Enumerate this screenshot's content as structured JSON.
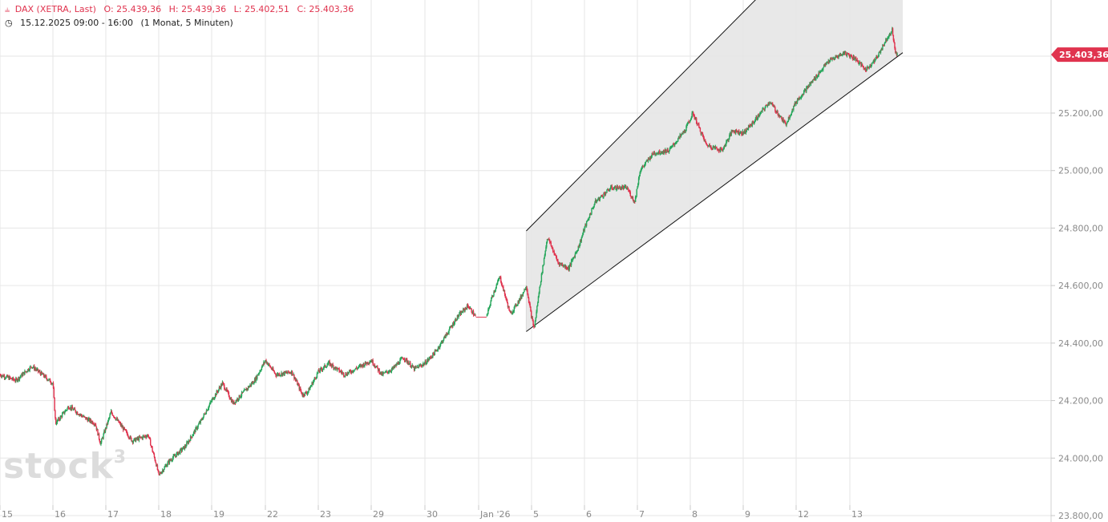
{
  "header": {
    "symbol_icon": "candlestick-icon",
    "instrument": "DAX (XETRA, Last)",
    "open": "O: 25.439,36",
    "high": "H: 25.439,36",
    "low": "L: 25.402,51",
    "close": "C: 25.403,36",
    "clock_icon": "clock-icon",
    "period": "15.12.2025 09:00 - 16:00",
    "interval": "(1 Monat, 5 Minuten)"
  },
  "logo": {
    "text": "stock",
    "sup": "3"
  },
  "last_price_label": "25.403,36",
  "colors": {
    "up": "#26a65b",
    "down": "#e0334e",
    "channel_fill": "#e6e6e6",
    "grid": "#e6e6e6"
  },
  "chart_data": {
    "type": "candlestick",
    "title": "DAX (XETRA, Last)",
    "ylim": [
      23800,
      26100
    ],
    "y_ticks": [
      {
        "value": 23800,
        "label": "23.800,00"
      },
      {
        "value": 24000,
        "label": "24.000,00"
      },
      {
        "value": 24200,
        "label": "24.200,00"
      },
      {
        "value": 24400,
        "label": "24.400,00"
      },
      {
        "value": 24600,
        "label": "24.600,00"
      },
      {
        "value": 24800,
        "label": "24.800,00"
      },
      {
        "value": 25000,
        "label": "25.000,00"
      },
      {
        "value": 25200,
        "label": "25.200,00"
      }
    ],
    "x_ticks": [
      "15",
      "16",
      "17",
      "18",
      "19",
      "22",
      "23",
      "29",
      "30",
      "Jan '26",
      "5",
      "6",
      "7",
      "8",
      "9",
      "12",
      "13"
    ],
    "last_price": 25403.36,
    "grid": true,
    "path": [
      [
        0.0,
        24290
      ],
      [
        0.3,
        24270
      ],
      [
        0.6,
        24320
      ],
      [
        0.8,
        24290
      ],
      [
        1.0,
        24260
      ],
      [
        1.05,
        24120
      ],
      [
        1.3,
        24180
      ],
      [
        1.6,
        24140
      ],
      [
        1.8,
        24120
      ],
      [
        1.9,
        24050
      ],
      [
        2.1,
        24160
      ],
      [
        2.5,
        24060
      ],
      [
        2.8,
        24080
      ],
      [
        2.95,
        23980
      ],
      [
        3.0,
        23940
      ],
      [
        3.2,
        23990
      ],
      [
        3.5,
        24040
      ],
      [
        3.8,
        24130
      ],
      [
        4.0,
        24200
      ],
      [
        4.2,
        24260
      ],
      [
        4.4,
        24190
      ],
      [
        4.6,
        24230
      ],
      [
        4.8,
        24270
      ],
      [
        5.0,
        24340
      ],
      [
        5.2,
        24290
      ],
      [
        5.5,
        24300
      ],
      [
        5.7,
        24220
      ],
      [
        5.8,
        24230
      ],
      [
        6.0,
        24300
      ],
      [
        6.2,
        24330
      ],
      [
        6.5,
        24290
      ],
      [
        6.7,
        24310
      ],
      [
        7.0,
        24340
      ],
      [
        7.2,
        24290
      ],
      [
        7.4,
        24310
      ],
      [
        7.6,
        24350
      ],
      [
        7.8,
        24310
      ],
      [
        8.0,
        24330
      ],
      [
        8.2,
        24370
      ],
      [
        8.4,
        24430
      ],
      [
        8.6,
        24490
      ],
      [
        8.8,
        24530
      ],
      [
        8.95,
        24490
      ],
      [
        9.15,
        24490
      ],
      [
        9.25,
        24560
      ],
      [
        9.4,
        24630
      ],
      [
        9.6,
        24500
      ],
      [
        9.8,
        24560
      ],
      [
        9.9,
        24600
      ],
      [
        10.0,
        24490
      ],
      [
        10.05,
        24450
      ],
      [
        10.15,
        24590
      ],
      [
        10.3,
        24770
      ],
      [
        10.5,
        24680
      ],
      [
        10.7,
        24660
      ],
      [
        10.9,
        24740
      ],
      [
        11.0,
        24800
      ],
      [
        11.2,
        24890
      ],
      [
        11.5,
        24940
      ],
      [
        11.8,
        24940
      ],
      [
        11.95,
        24890
      ],
      [
        12.05,
        25000
      ],
      [
        12.3,
        25060
      ],
      [
        12.6,
        25070
      ],
      [
        12.9,
        25140
      ],
      [
        13.05,
        25200
      ],
      [
        13.3,
        25090
      ],
      [
        13.6,
        25070
      ],
      [
        13.8,
        25140
      ],
      [
        14.0,
        25130
      ],
      [
        14.2,
        25170
      ],
      [
        14.5,
        25240
      ],
      [
        14.8,
        25160
      ],
      [
        15.0,
        25240
      ],
      [
        15.3,
        25310
      ],
      [
        15.6,
        25380
      ],
      [
        15.9,
        25410
      ],
      [
        16.1,
        25390
      ],
      [
        16.3,
        25350
      ],
      [
        16.5,
        25390
      ],
      [
        16.7,
        25460
      ],
      [
        16.8,
        25490
      ],
      [
        16.85,
        25420
      ],
      [
        16.9,
        25400
      ]
    ],
    "channel": {
      "upper": [
        [
          9.9,
          24790
        ],
        [
          17.0,
          26110
        ]
      ],
      "lower": [
        [
          9.9,
          24440
        ],
        [
          17.0,
          25410
        ]
      ]
    }
  }
}
